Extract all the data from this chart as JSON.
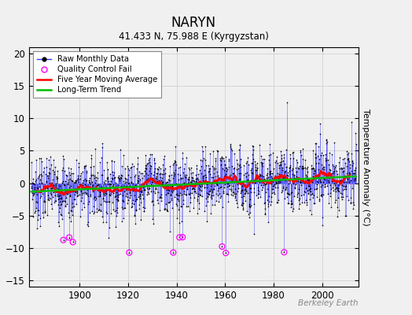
{
  "title": "NARYN",
  "subtitle": "41.433 N, 75.988 E (Kyrgyzstan)",
  "ylabel": "Temperature Anomaly (°C)",
  "watermark": "Berkeley Earth",
  "year_start": 1880,
  "year_end": 2013,
  "ylim": [
    -16,
    21
  ],
  "yticks": [
    -15,
    -10,
    -5,
    0,
    5,
    10,
    15,
    20
  ],
  "xticks": [
    1900,
    1920,
    1940,
    1960,
    1980,
    2000
  ],
  "colors": {
    "raw_line": "#3333ff",
    "raw_dot": "#000000",
    "qc_fail": "#ff00ff",
    "moving_avg": "#ff0000",
    "trend": "#00bb00",
    "grid": "#cccccc",
    "background": "#f0f0f0"
  },
  "legend_labels": {
    "raw": "Raw Monthly Data",
    "qc": "Quality Control Fail",
    "moving_avg": "Five Year Moving Average",
    "trend": "Long-Term Trend"
  }
}
